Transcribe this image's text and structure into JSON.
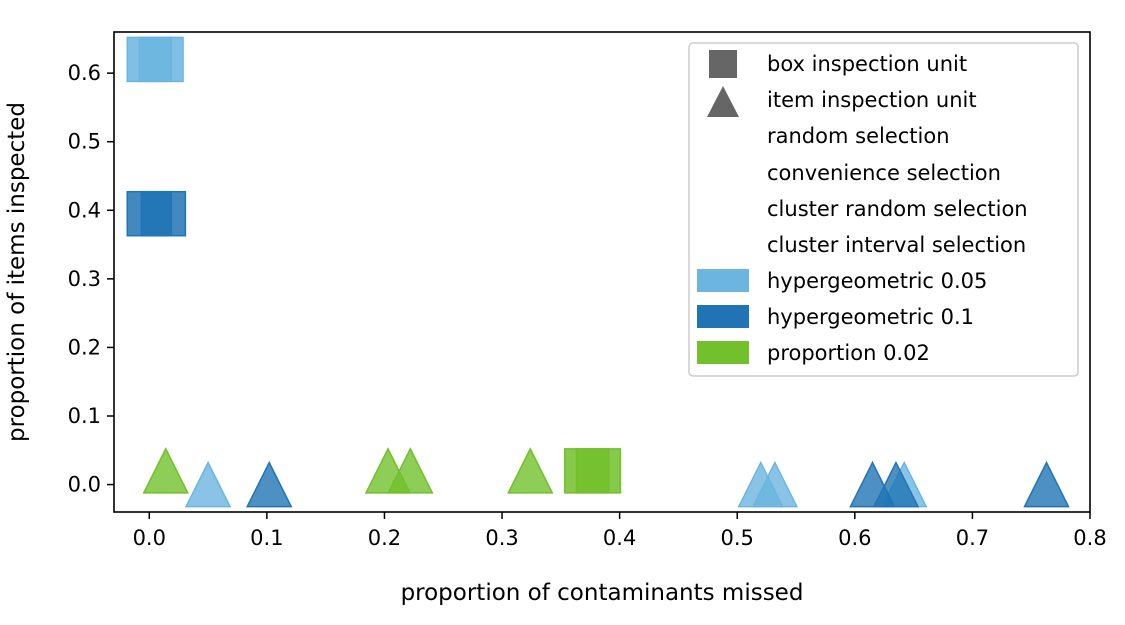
{
  "chart_data": {
    "type": "scatter",
    "title": "",
    "xlabel": "proportion of contaminants missed",
    "ylabel": "proportion of items inspected",
    "xlim": [
      -0.03,
      0.8
    ],
    "ylim": [
      -0.04,
      0.66
    ],
    "xticks": [
      0.0,
      0.1,
      0.2,
      0.3,
      0.4,
      0.5,
      0.6,
      0.7,
      0.8
    ],
    "yticks": [
      0.0,
      0.1,
      0.2,
      0.3,
      0.4,
      0.5,
      0.6
    ],
    "xtick_labels": [
      "0.0",
      "0.1",
      "0.2",
      "0.3",
      "0.4",
      "0.5",
      "0.6",
      "0.7",
      "0.8"
    ],
    "ytick_labels": [
      "0.0",
      "0.1",
      "0.2",
      "0.3",
      "0.4",
      "0.5",
      "0.6"
    ],
    "grid": false,
    "legend_position": "top-right",
    "legend": {
      "markers": [
        {
          "label": "box inspection unit",
          "marker": "square"
        },
        {
          "label": "item inspection unit",
          "marker": "triangle"
        }
      ],
      "selections": [
        {
          "label": "random selection"
        },
        {
          "label": "convenience selection"
        },
        {
          "label": "cluster random selection"
        },
        {
          "label": "cluster interval selection"
        }
      ],
      "colors": [
        {
          "label": "hypergeometric 0.05",
          "color": "#6bb5e0"
        },
        {
          "label": "hypergeometric 0.1",
          "color": "#2074b4"
        },
        {
          "label": "proportion 0.02",
          "color": "#72c02c"
        }
      ]
    },
    "series": [
      {
        "name": "hypergeometric 0.05",
        "color": "#6bb5e0",
        "points": [
          {
            "x": 0.0,
            "y": 0.62,
            "marker": "square"
          },
          {
            "x": 0.01,
            "y": 0.62,
            "marker": "square"
          },
          {
            "x": 0.05,
            "y": 0.0,
            "marker": "triangle"
          },
          {
            "x": 0.52,
            "y": 0.0,
            "marker": "triangle"
          },
          {
            "x": 0.532,
            "y": 0.0,
            "marker": "triangle"
          },
          {
            "x": 0.642,
            "y": 0.0,
            "marker": "triangle"
          }
        ]
      },
      {
        "name": "hypergeometric 0.1",
        "color": "#2074b4",
        "points": [
          {
            "x": 0.0,
            "y": 0.395,
            "marker": "square"
          },
          {
            "x": 0.012,
            "y": 0.395,
            "marker": "square"
          },
          {
            "x": 0.102,
            "y": 0.0,
            "marker": "triangle"
          },
          {
            "x": 0.615,
            "y": 0.0,
            "marker": "triangle"
          },
          {
            "x": 0.635,
            "y": 0.0,
            "marker": "triangle"
          },
          {
            "x": 0.763,
            "y": 0.0,
            "marker": "triangle"
          }
        ]
      },
      {
        "name": "proportion 0.02",
        "color": "#72c02c",
        "points": [
          {
            "x": 0.014,
            "y": 0.02,
            "marker": "triangle"
          },
          {
            "x": 0.203,
            "y": 0.02,
            "marker": "triangle"
          },
          {
            "x": 0.222,
            "y": 0.02,
            "marker": "triangle"
          },
          {
            "x": 0.324,
            "y": 0.02,
            "marker": "triangle"
          },
          {
            "x": 0.372,
            "y": 0.02,
            "marker": "square"
          },
          {
            "x": 0.382,
            "y": 0.02,
            "marker": "square"
          }
        ]
      }
    ]
  }
}
